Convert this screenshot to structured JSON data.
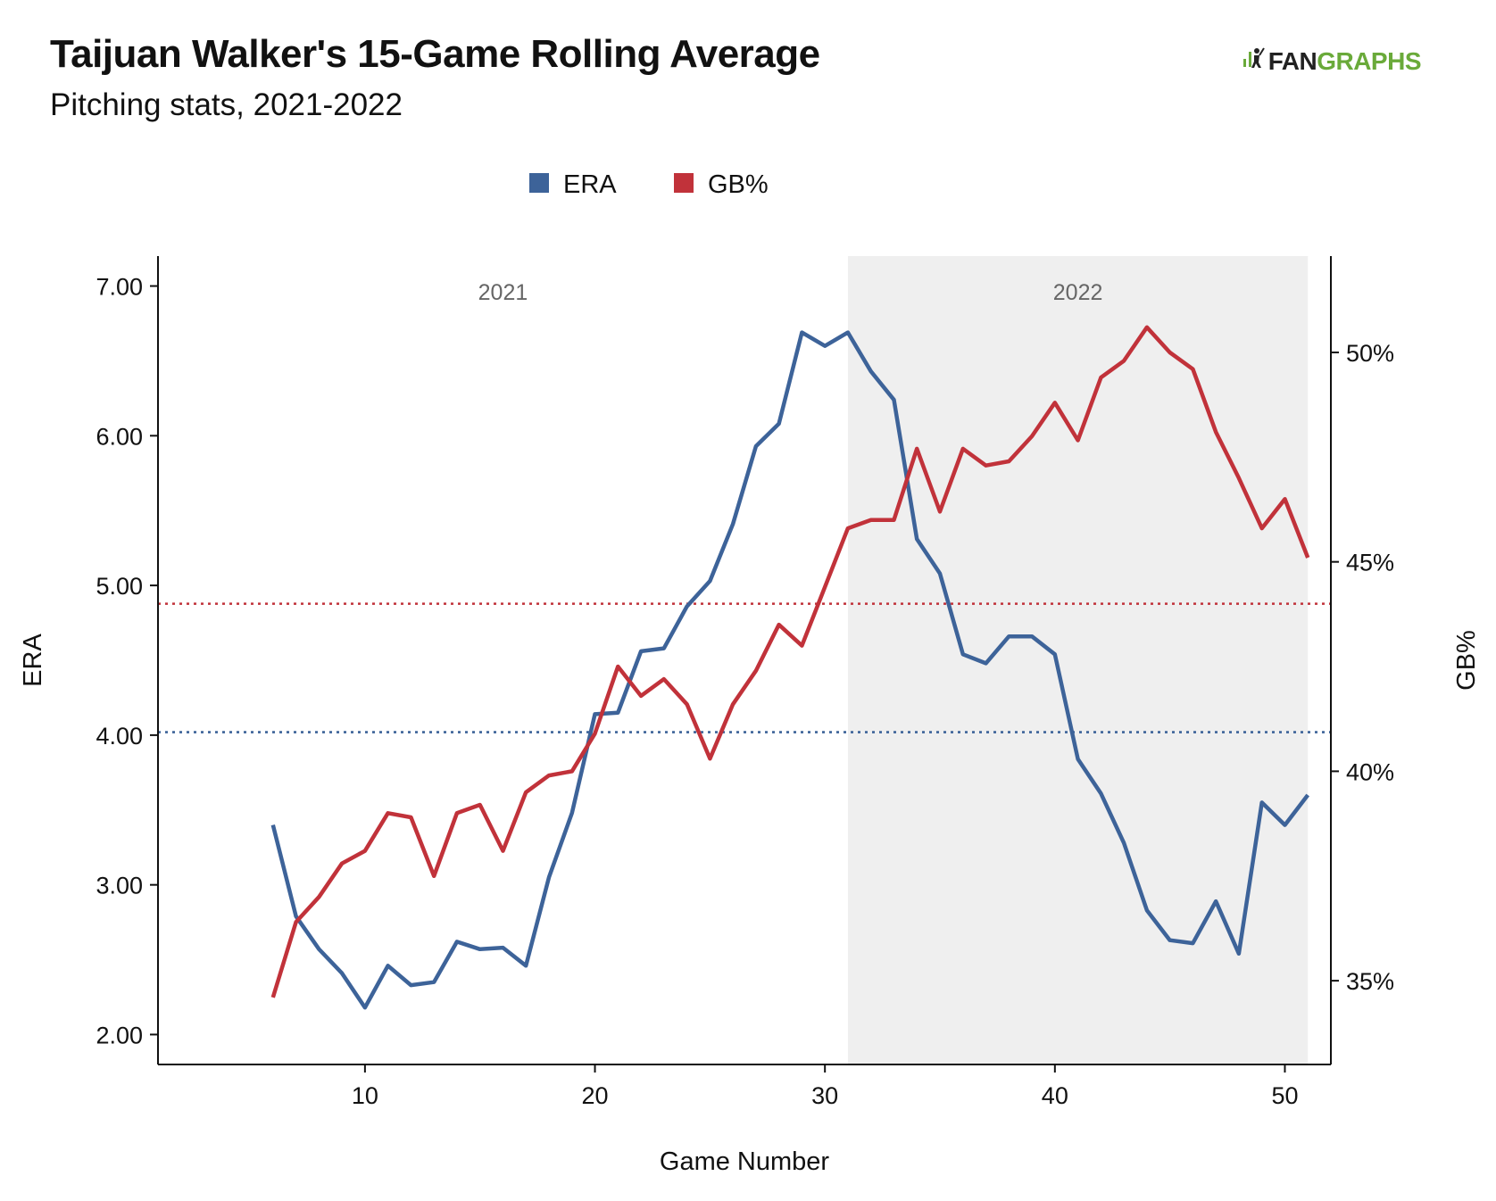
{
  "header": {
    "title": "Taijuan Walker's 15-Game Rolling Average",
    "subtitle": "Pitching stats, 2021-2022",
    "logo_left": "FAN",
    "logo_right": "GRAPHS"
  },
  "colors": {
    "era": "#3d6399",
    "gb": "#c1323a",
    "shade": "#efefef",
    "logo_green": "#6aaa3a"
  },
  "chart_data": {
    "type": "line",
    "title": "Taijuan Walker's 15-Game Rolling Average",
    "subtitle": "Pitching stats, 2021-2022",
    "xlabel": "Game Number",
    "ylabel_left": "ERA",
    "ylabel_right": "GB%",
    "xlim": [
      1,
      52
    ],
    "ylim_left": [
      1.8,
      7.2
    ],
    "ylim_right": [
      33.0,
      52.3
    ],
    "xticks": [
      10,
      20,
      30,
      40,
      50
    ],
    "yticks_left": [
      "2.00",
      "3.00",
      "4.00",
      "5.00",
      "6.00",
      "7.00"
    ],
    "yticks_left_values": [
      2,
      3,
      4,
      5,
      6,
      7
    ],
    "yticks_right": [
      "35%",
      "40%",
      "45%",
      "50%"
    ],
    "yticks_right_values": [
      35,
      40,
      45,
      50
    ],
    "legend": [
      "ERA",
      "GB%"
    ],
    "legend_position": "top-center",
    "grid": false,
    "regions": [
      {
        "label": "2021",
        "x_start": 1,
        "x_end": 31
      },
      {
        "label": "2022",
        "x_start": 31,
        "x_end": 51,
        "shaded": true
      }
    ],
    "reference_lines": [
      {
        "series": "ERA",
        "axis": "left",
        "value": 4.02,
        "style": "dotted"
      },
      {
        "series": "GB%",
        "axis": "right",
        "value": 44.0,
        "style": "dotted"
      }
    ],
    "x": [
      6,
      7,
      8,
      9,
      10,
      11,
      12,
      13,
      14,
      15,
      16,
      17,
      18,
      19,
      20,
      21,
      22,
      23,
      24,
      25,
      26,
      27,
      28,
      29,
      30,
      31,
      32,
      33,
      34,
      35,
      36,
      37,
      38,
      39,
      40,
      41,
      42,
      43,
      44,
      45,
      46,
      47,
      48,
      49,
      50,
      51
    ],
    "series": [
      {
        "name": "ERA",
        "axis": "left",
        "values": [
          3.4,
          2.79,
          2.57,
          2.41,
          2.18,
          2.46,
          2.33,
          2.35,
          2.62,
          2.57,
          2.58,
          2.46,
          3.05,
          3.48,
          4.14,
          4.15,
          4.56,
          4.58,
          4.86,
          5.03,
          5.41,
          5.93,
          6.08,
          6.69,
          6.6,
          6.69,
          6.43,
          6.24,
          5.31,
          5.08,
          4.54,
          4.48,
          4.66,
          4.66,
          4.54,
          3.84,
          3.61,
          3.28,
          2.83,
          2.63,
          2.61,
          2.89,
          2.54,
          3.55,
          3.4,
          3.6
        ]
      },
      {
        "name": "GB%",
        "axis": "right",
        "values": [
          34.6,
          36.4,
          37.0,
          37.8,
          38.1,
          39.0,
          38.9,
          37.5,
          39.0,
          39.2,
          38.1,
          39.5,
          39.9,
          40.0,
          40.9,
          42.5,
          41.8,
          42.2,
          41.6,
          40.3,
          41.6,
          42.4,
          43.5,
          43.0,
          44.4,
          45.8,
          46.0,
          46.0,
          47.7,
          46.2,
          47.7,
          47.3,
          47.4,
          48.0,
          48.8,
          47.9,
          49.4,
          49.8,
          50.6,
          50.0,
          49.6,
          48.1,
          47.0,
          45.8,
          46.5,
          45.1
        ]
      }
    ]
  }
}
